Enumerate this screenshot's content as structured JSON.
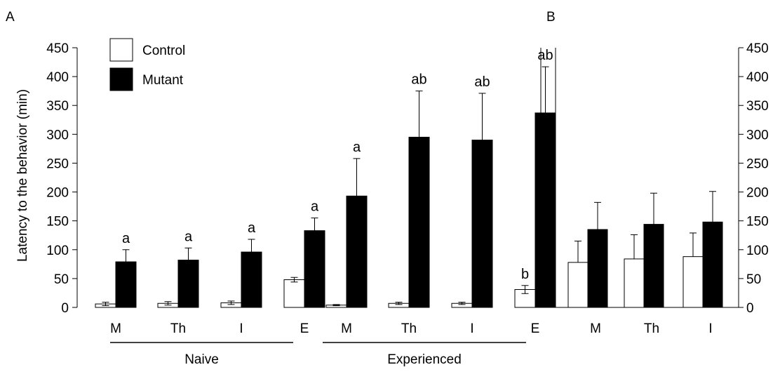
{
  "panel_labels": {
    "a": "A",
    "b": "B"
  },
  "legend": {
    "control": "Control",
    "mutant": "Mutant"
  },
  "colors": {
    "control": "#ffffff",
    "mutant": "#000000",
    "stroke": "#000000"
  },
  "chart_data": [
    {
      "panel": "A",
      "type": "bar",
      "ylabel": "Latency to the behavior (min)",
      "ylim": [
        0,
        450
      ],
      "yticks": [
        0,
        50,
        100,
        150,
        200,
        250,
        300,
        350,
        400,
        450
      ],
      "legend_position": "top-left",
      "groups": [
        {
          "name": "Naive",
          "categories": [
            "M",
            "Th",
            "I",
            "E"
          ],
          "series": [
            {
              "name": "Control",
              "values": [
                6,
                7,
                8,
                48
              ],
              "errors": [
                3,
                3,
                3,
                4
              ],
              "labels": [
                "",
                "",
                "",
                ""
              ]
            },
            {
              "name": "Mutant",
              "values": [
                79,
                82,
                96,
                133
              ],
              "errors": [
                21,
                21,
                22,
                22
              ],
              "labels": [
                "a",
                "a",
                "a",
                "a"
              ]
            }
          ]
        },
        {
          "name": "Experienced",
          "categories": [
            "M",
            "Th",
            "I",
            "E"
          ],
          "series": [
            {
              "name": "Control",
              "values": [
                4,
                7,
                7,
                31
              ],
              "errors": [
                1,
                2,
                2,
                7
              ],
              "labels": [
                "",
                "",
                "",
                "b"
              ]
            },
            {
              "name": "Mutant",
              "values": [
                193,
                295,
                290,
                337
              ],
              "errors": [
                65,
                80,
                81,
                80
              ],
              "labels": [
                "a",
                "ab",
                "ab",
                "ab"
              ]
            }
          ]
        }
      ]
    },
    {
      "panel": "B",
      "type": "bar",
      "ylim": [
        0,
        450
      ],
      "yticks": [
        0,
        50,
        100,
        150,
        200,
        250,
        300,
        350,
        400,
        450
      ],
      "categories": [
        "M",
        "Th",
        "I"
      ],
      "series": [
        {
          "name": "Control",
          "values": [
            78,
            84,
            88
          ],
          "errors": [
            37,
            42,
            41
          ]
        },
        {
          "name": "Mutant",
          "values": [
            135,
            144,
            148
          ],
          "errors": [
            47,
            54,
            53
          ]
        }
      ]
    }
  ]
}
